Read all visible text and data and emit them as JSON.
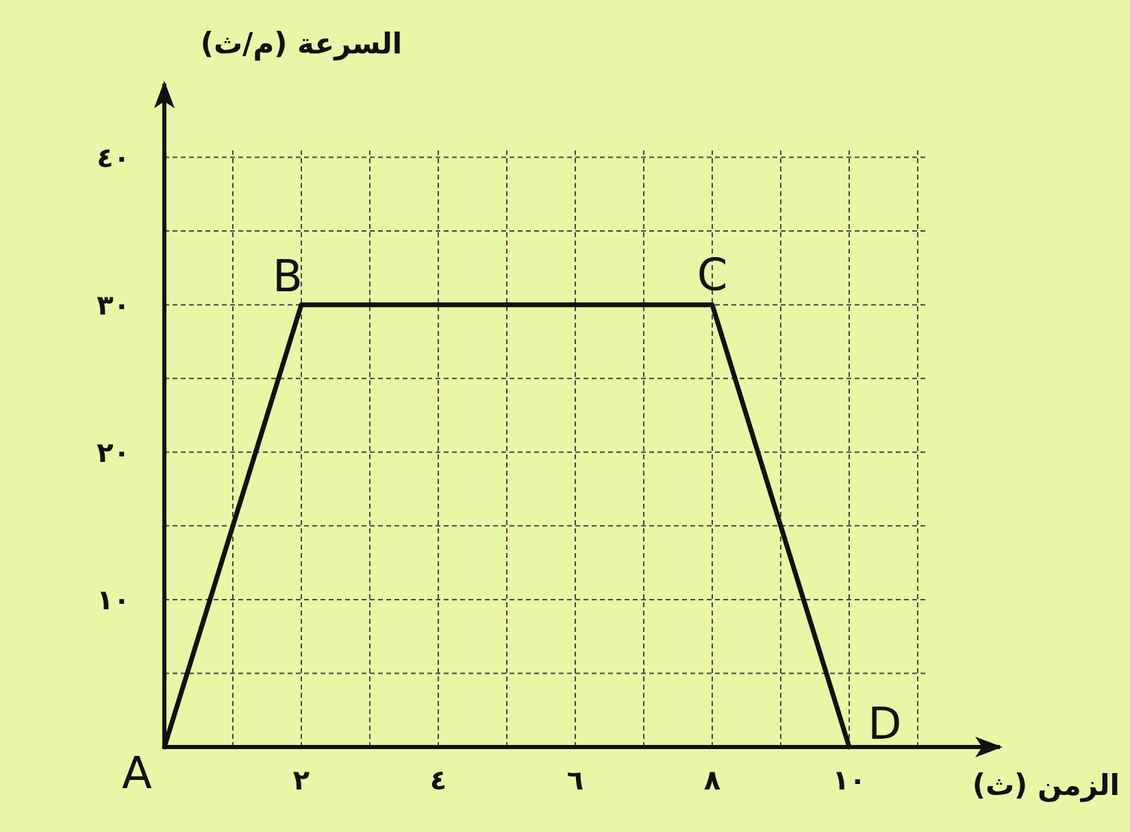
{
  "chart_data": {
    "type": "line",
    "xlabel": "الزمن (ث)",
    "ylabel": "السرعة (م/ث)",
    "x": [
      0,
      2,
      8,
      10
    ],
    "series": [
      {
        "color": "#111111",
        "values": [
          0,
          30,
          30,
          0
        ]
      }
    ],
    "xlim": [
      0,
      12.2
    ],
    "ylim": [
      0,
      45
    ],
    "xticks": [
      {
        "value": 1,
        "label": null
      },
      {
        "value": 2,
        "label": "٢"
      },
      {
        "value": 3,
        "label": null
      },
      {
        "value": 4,
        "label": "٤"
      },
      {
        "value": 5,
        "label": null
      },
      {
        "value": 6,
        "label": "٦"
      },
      {
        "value": 7,
        "label": null
      },
      {
        "value": 8,
        "label": "٨"
      },
      {
        "value": 9,
        "label": null
      },
      {
        "value": 10,
        "label": "١٠"
      },
      {
        "value": 11,
        "label": null
      }
    ],
    "yticks": [
      {
        "value": 5,
        "label": null
      },
      {
        "value": 10,
        "label": "١٠"
      },
      {
        "value": 15,
        "label": null
      },
      {
        "value": 20,
        "label": "٢٠"
      },
      {
        "value": 25,
        "label": null
      },
      {
        "value": 30,
        "label": "٣٠"
      },
      {
        "value": 35,
        "label": null
      },
      {
        "value": 40,
        "label": "٤٠"
      }
    ],
    "grid": true,
    "line_style": "solid",
    "annotations": [
      {
        "text": "A",
        "x": 0,
        "y": 0
      },
      {
        "text": "B",
        "x": 2,
        "y": 30
      },
      {
        "text": "C",
        "x": 8,
        "y": 30
      },
      {
        "text": "D",
        "x": 10,
        "y": 0
      }
    ]
  }
}
